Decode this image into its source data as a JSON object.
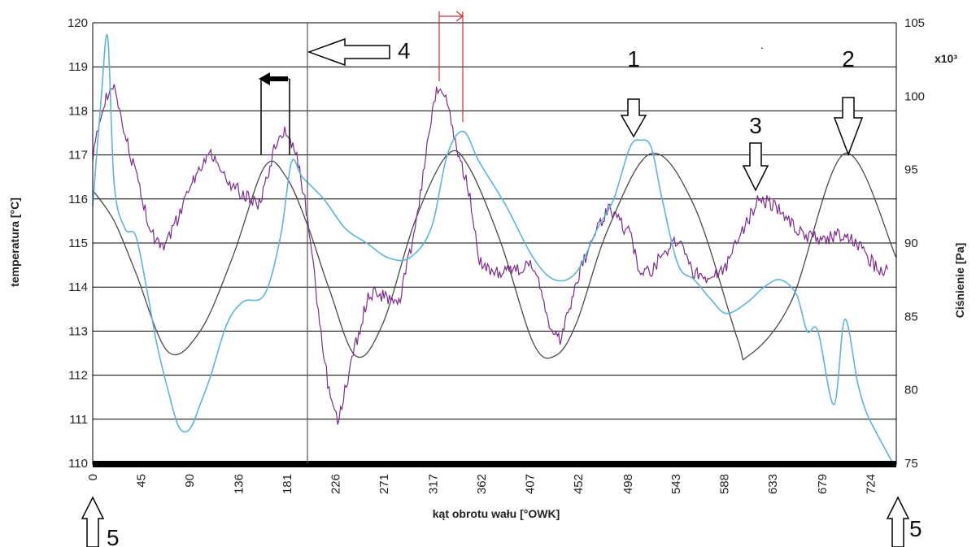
{
  "chart_data": {
    "type": "line",
    "xlabel": "kąt obrotu wału [°OWK]",
    "ylabel_left": "temperatura [°C]",
    "ylabel_right": "Ciśnienie [Pa]",
    "right_multiplier": "x10³",
    "x_ticks": [
      "0",
      "45",
      "90",
      "136",
      "181",
      "226",
      "271",
      "317",
      "362",
      "407",
      "452",
      "498",
      "543",
      "588",
      "633",
      "679",
      "724"
    ],
    "x_range": [
      0,
      748
    ],
    "y_left_range": [
      110,
      120
    ],
    "y_left_ticks": [
      "110",
      "111",
      "112",
      "113",
      "114",
      "115",
      "116",
      "117",
      "118",
      "119",
      "120"
    ],
    "y_right_range": [
      75,
      105
    ],
    "y_right_ticks": [
      "75",
      "80",
      "85",
      "90",
      "95",
      "100",
      "105"
    ],
    "grid": "horizontal",
    "series": [
      {
        "axis": "right",
        "color": "#4a4a4a",
        "x": [
          0,
          20,
          40,
          70,
          100,
          130,
          160,
          180,
          200,
          220,
          245,
          270,
          300,
          330,
          350,
          380,
          410,
          430,
          450,
          480,
          520,
          560,
          600,
          610,
          650,
          700,
          748
        ],
        "values": [
          93.6,
          91.5,
          88,
          82.6,
          84,
          89,
          95.2,
          94.5,
          91.2,
          86.9,
          82.3,
          84.5,
          91.5,
          96,
          95.2,
          90,
          83.2,
          82.3,
          84.5,
          91,
          96.1,
          92.5,
          83.5,
          82.3,
          86,
          96.1,
          89
        ]
      },
      {
        "axis": "left",
        "color": "#7b2d8b",
        "x": [
          0,
          10,
          20,
          35,
          45,
          55,
          65,
          80,
          95,
          110,
          125,
          135,
          145,
          155,
          170,
          180,
          190,
          200,
          210,
          220,
          228,
          240,
          255,
          265,
          275,
          285,
          300,
          310,
          320,
          330,
          340,
          350,
          360,
          375,
          390,
          410,
          425,
          435,
          445,
          455,
          470,
          480,
          500,
          510,
          520,
          530,
          540,
          550,
          560,
          575,
          590,
          610,
          620,
          630,
          640,
          660,
          680,
          700,
          715,
          730,
          740
        ],
        "values": [
          117,
          118.2,
          118.5,
          117,
          116.1,
          115.2,
          114.9,
          115.6,
          116.5,
          117.1,
          116.4,
          116.2,
          116,
          115.9,
          117.2,
          117.6,
          117,
          115.6,
          113.5,
          111.6,
          110.9,
          112.2,
          113.7,
          113.9,
          113.7,
          113.6,
          115.3,
          117,
          118.5,
          118.3,
          117,
          116.2,
          114.6,
          114.3,
          114.4,
          114.5,
          113.2,
          112.8,
          113.6,
          114.5,
          115.3,
          115.8,
          115.2,
          114.3,
          114.4,
          114.7,
          115,
          114.9,
          114.3,
          114.2,
          114.5,
          115.5,
          116,
          115.9,
          115.7,
          115.2,
          115.1,
          115.2,
          114.9,
          114.4,
          114.4
        ]
      },
      {
        "axis": "right",
        "color": "#5db5d8",
        "x": [
          0,
          8,
          14,
          20,
          30,
          40,
          50,
          60,
          70,
          80,
          90,
          100,
          110,
          125,
          140,
          160,
          175,
          185,
          195,
          215,
          235,
          255,
          275,
          295,
          315,
          330,
          345,
          360,
          385,
          410,
          430,
          450,
          470,
          485,
          500,
          510,
          520,
          530,
          545,
          560,
          575,
          590,
          610,
          625,
          640,
          655,
          665,
          675,
          690,
          700,
          712,
          720,
          730,
          745
        ],
        "values": [
          92.5,
          100,
          104,
          94,
          91,
          90.5,
          87,
          83,
          80,
          77.5,
          77.3,
          79,
          81,
          84.5,
          86,
          86.5,
          90.5,
          95.5,
          94.5,
          93,
          91,
          90,
          89,
          89,
          91,
          96,
          97.6,
          95.5,
          92.5,
          89,
          87.5,
          88,
          91,
          93,
          96.5,
          97,
          96.5,
          93,
          88.5,
          87.5,
          86.2,
          85.2,
          86,
          87,
          87.5,
          86.5,
          84,
          84,
          79,
          84.8,
          80.5,
          78.5,
          77,
          75
        ]
      }
    ],
    "annotations": {
      "arrow_1": "1",
      "arrow_2": "2",
      "arrow_3": "3",
      "arrow_4": "4",
      "arrow_5_left": "5",
      "arrow_5_right": "5"
    }
  }
}
